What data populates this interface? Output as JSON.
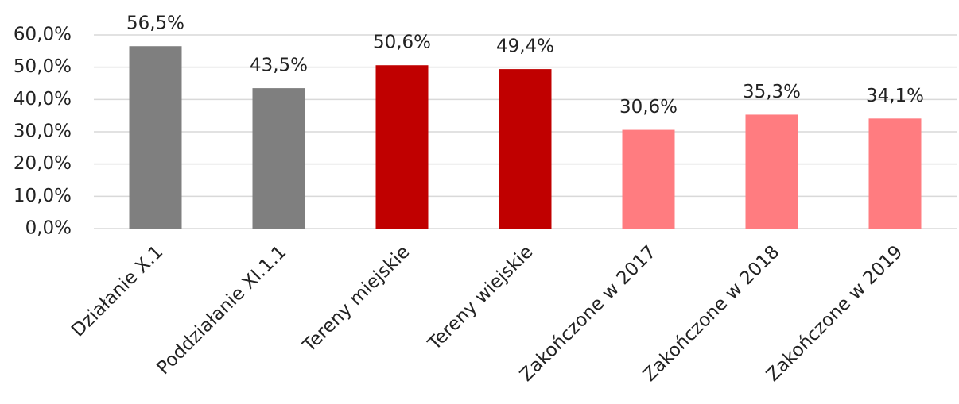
{
  "chart_data": {
    "type": "bar",
    "categories": [
      "Działanie X.1",
      "Poddziałanie XI.1.1",
      "Tereny miejskie",
      "Tereny wiejskie",
      "Zakończone w 2017",
      "Zakończone w 2018",
      "Zakończone w 2019"
    ],
    "values": [
      56.5,
      43.5,
      50.6,
      49.4,
      30.6,
      35.3,
      34.1
    ],
    "value_labels": [
      "56,5%",
      "43,5%",
      "50,6%",
      "49,4%",
      "30,6%",
      "35,3%",
      "34,1%"
    ],
    "colors": [
      "#7f7f7f",
      "#7f7f7f",
      "#c00000",
      "#c00000",
      "#ff7c80",
      "#ff7c80",
      "#ff7c80"
    ],
    "ylim": [
      0,
      60
    ],
    "yticks": [
      {
        "value": 0,
        "label": "0,0%"
      },
      {
        "value": 10,
        "label": "10,0%"
      },
      {
        "value": 20,
        "label": "20,0%"
      },
      {
        "value": 30,
        "label": "30,0%"
      },
      {
        "value": 40,
        "label": "40,0%"
      },
      {
        "value": 50,
        "label": "50,0%"
      },
      {
        "value": 60,
        "label": "60,0%"
      }
    ],
    "grid": true
  }
}
